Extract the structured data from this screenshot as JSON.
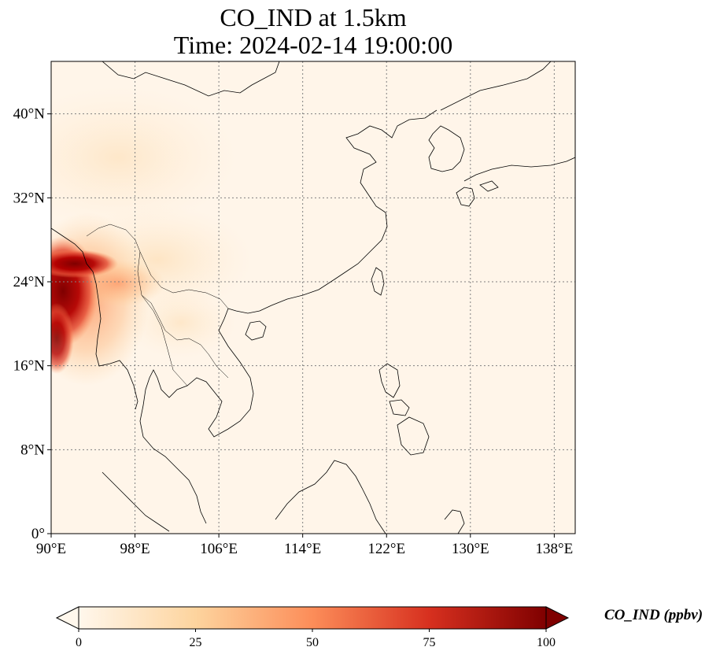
{
  "title": {
    "line1": "CO_IND at 1.5km",
    "line2": "Time: 2024-02-14 19:00:00"
  },
  "map": {
    "lon_range": [
      90,
      140
    ],
    "lat_range": [
      0,
      45
    ],
    "lon_ticks": [
      {
        "value": 90,
        "label": "90°E"
      },
      {
        "value": 98,
        "label": "98°E"
      },
      {
        "value": 106,
        "label": "106°E"
      },
      {
        "value": 114,
        "label": "114°E"
      },
      {
        "value": 122,
        "label": "122°E"
      },
      {
        "value": 130,
        "label": "130°E"
      },
      {
        "value": 138,
        "label": "138°E"
      }
    ],
    "lat_ticks": [
      {
        "value": 0,
        "label": "0°"
      },
      {
        "value": 8,
        "label": "8°N"
      },
      {
        "value": 16,
        "label": "16°N"
      },
      {
        "value": 24,
        "label": "24°N"
      },
      {
        "value": 32,
        "label": "32°N"
      },
      {
        "value": 40,
        "label": "40°N"
      }
    ],
    "gridlines": true,
    "colormap": "OrRd",
    "background_color": "#fff5e9",
    "hotspot_region": "Myanmar / Bangladesh / NE India border"
  },
  "colorbar": {
    "label": "CO_IND (ppbv)",
    "min": 0,
    "max": 100,
    "extend": "both",
    "ticks": [
      {
        "value": 0,
        "label": "0"
      },
      {
        "value": 25,
        "label": "25"
      },
      {
        "value": 50,
        "label": "50"
      },
      {
        "value": 75,
        "label": "75"
      },
      {
        "value": 100,
        "label": "100"
      }
    ],
    "colors": {
      "low": "#fff7ec",
      "low_mid": "#fdd49e",
      "mid": "#fc8d59",
      "high_mid": "#d7301f",
      "high": "#7f0000"
    }
  }
}
